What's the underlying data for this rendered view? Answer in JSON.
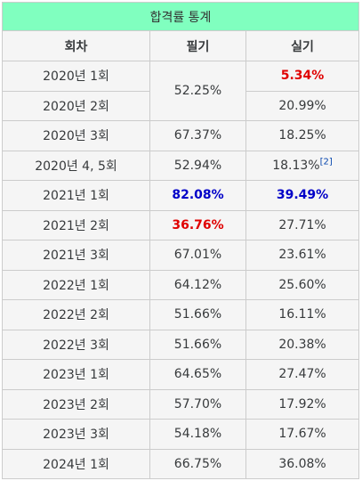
{
  "table": {
    "caption": "합격률 통계",
    "headers": [
      "회차",
      "필기",
      "실기"
    ],
    "rows": [
      {
        "session": "2020년 1회",
        "written": "52.25%",
        "practical": "5.34%"
      },
      {
        "session": "2020년 2회",
        "written": "52.25%",
        "practical": "20.99%"
      },
      {
        "session": "2020년 3회",
        "written": "67.37%",
        "practical": "18.25%"
      },
      {
        "session": "2020년 4, 5회",
        "written": "52.94%",
        "practical": "18.13%",
        "practical_ref": "[2]"
      },
      {
        "session": "2021년 1회",
        "written": "82.08%",
        "practical": "39.49%"
      },
      {
        "session": "2021년 2회",
        "written": "36.76%",
        "practical": "27.71%"
      },
      {
        "session": "2021년 3회",
        "written": "67.01%",
        "practical": "23.61%"
      },
      {
        "session": "2022년 1회",
        "written": "64.12%",
        "practical": "25.60%"
      },
      {
        "session": "2022년 2회",
        "written": "51.66%",
        "practical": "16.11%"
      },
      {
        "session": "2022년 3회",
        "written": "51.66%",
        "practical": "20.38%"
      },
      {
        "session": "2023년 1회",
        "written": "64.65%",
        "practical": "27.47%"
      },
      {
        "session": "2023년 2회",
        "written": "57.70%",
        "practical": "17.92%"
      },
      {
        "session": "2023년 3회",
        "written": "54.18%",
        "practical": "17.67%"
      },
      {
        "session": "2024년 1회",
        "written": "66.75%",
        "practical": "36.08%"
      }
    ]
  },
  "colors": {
    "caption_bg": "#80ffbf",
    "cell_bg": "#f5f5f5",
    "highlight_red": "#e00000",
    "highlight_blue": "#0000c8",
    "ref_link": "#0645ad"
  }
}
